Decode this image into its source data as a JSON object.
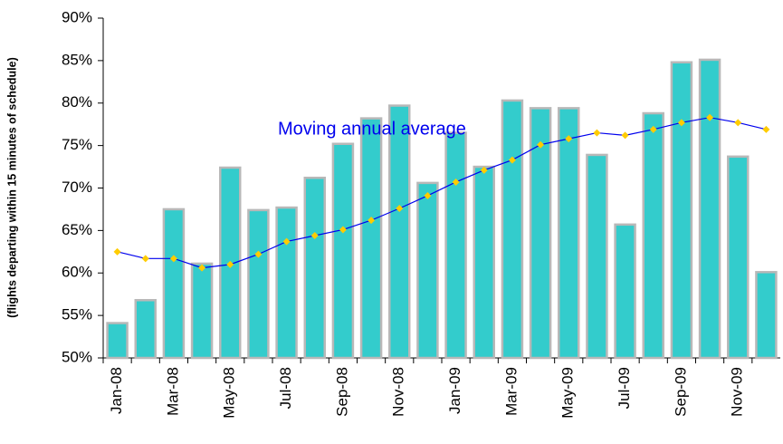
{
  "chart_data": {
    "type": "bar",
    "ylabel": "(flights departing within 15 minutes of schedule)",
    "categories": [
      "Jan-08",
      null,
      "Mar-08",
      null,
      "May-08",
      null,
      "Jul-08",
      null,
      "Sep-08",
      null,
      "Nov-08",
      null,
      "Jan-09",
      null,
      "Mar-09",
      null,
      "May-09",
      null,
      "Jul-09",
      null,
      "Sep-09",
      null,
      "Nov-09",
      null
    ],
    "series": [
      {
        "type": "bar",
        "color": "#33cccc",
        "values": [
          54.1,
          56.8,
          67.5,
          61.1,
          72.4,
          67.4,
          67.7,
          71.2,
          75.2,
          78.2,
          79.7,
          70.6,
          76.5,
          72.5,
          80.3,
          79.4,
          79.4,
          73.9,
          65.7,
          78.8,
          84.8,
          85.1,
          73.7,
          60.1
        ]
      },
      {
        "type": "line",
        "name": "Moving annual average",
        "color": "#0000ee",
        "marker_color": "#ffcc00",
        "values": [
          62.5,
          61.7,
          61.7,
          60.6,
          61.0,
          62.2,
          63.7,
          64.4,
          65.1,
          66.2,
          67.6,
          69.1,
          70.7,
          72.1,
          73.3,
          75.1,
          75.8,
          76.5,
          76.2,
          76.9,
          77.7,
          78.3,
          77.7,
          76.9
        ]
      }
    ],
    "ylim": [
      50,
      90
    ],
    "yticks": [
      {
        "value": 50,
        "label": "50%"
      },
      {
        "value": 55,
        "label": "55%"
      },
      {
        "value": 60,
        "label": "60%"
      },
      {
        "value": 65,
        "label": "65%"
      },
      {
        "value": 70,
        "label": "70%"
      },
      {
        "value": 75,
        "label": "75%"
      },
      {
        "value": 80,
        "label": "80%"
      },
      {
        "value": 85,
        "label": "85%"
      },
      {
        "value": 90,
        "label": "90%"
      }
    ],
    "grid": false
  }
}
